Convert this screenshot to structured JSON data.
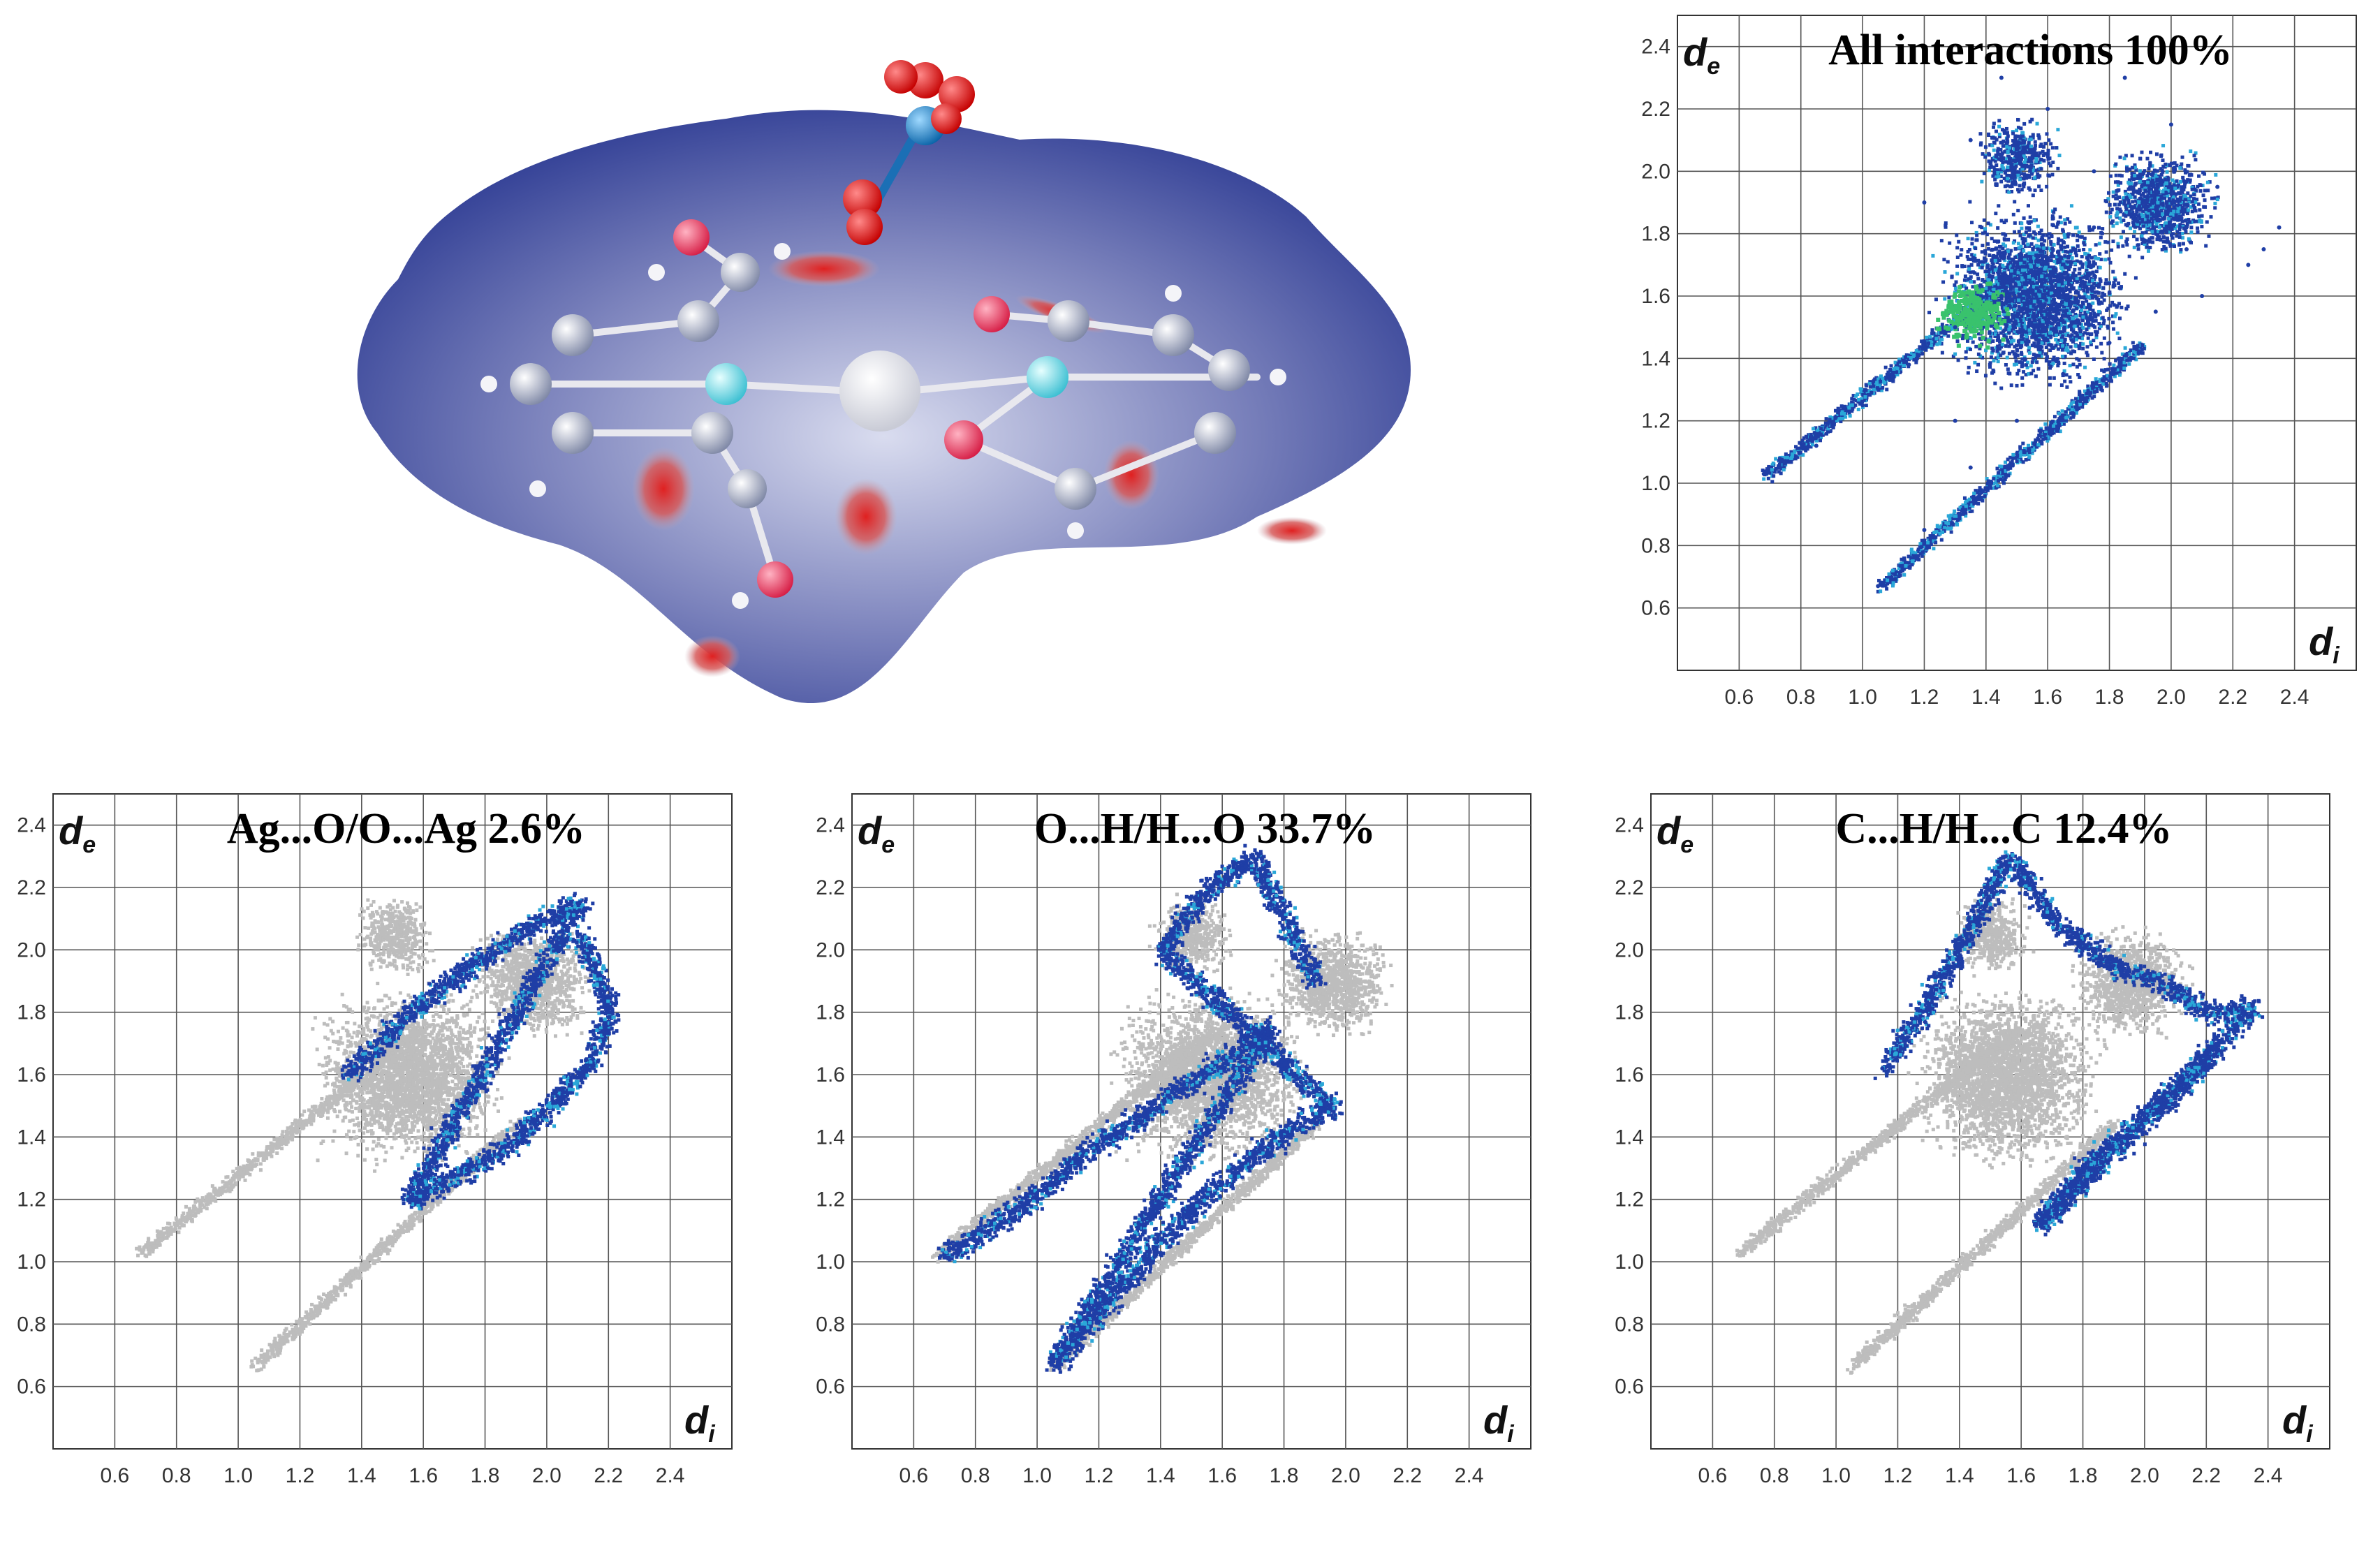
{
  "chart_data": [
    {
      "type": "scatter",
      "title": "All interactions 100%",
      "xlabel": "di",
      "ylabel": "de",
      "xlim": [
        0.4,
        2.6
      ],
      "ylim": [
        0.4,
        2.5
      ],
      "xticks": [
        "0.6",
        "0.8",
        "1.0",
        "1.2",
        "1.4",
        "1.6",
        "1.8",
        "2.0",
        "2.2",
        "2.4"
      ],
      "yticks": [
        "0.6",
        "0.8",
        "1.0",
        "1.2",
        "1.4",
        "1.6",
        "1.8",
        "2.0",
        "2.2",
        "2.4"
      ],
      "grid": true,
      "series": [
        {
          "role": "highlight",
          "regions": [
            [
              1.0,
              0.66,
              2.3,
              1.82
            ]
          ],
          "points": [
            [
              0.68,
              1.03
            ],
            [
              0.85,
              1.12
            ],
            [
              1.0,
              1.25
            ],
            [
              1.15,
              1.38
            ],
            [
              1.3,
              1.5
            ],
            [
              1.45,
              1.6
            ],
            [
              1.6,
              1.72
            ],
            [
              1.75,
              1.82
            ],
            [
              1.9,
              1.88
            ],
            [
              2.05,
              1.75
            ],
            [
              1.05,
              0.67
            ],
            [
              1.2,
              0.85
            ],
            [
              1.35,
              1.05
            ],
            [
              1.5,
              1.2
            ],
            [
              1.65,
              1.35
            ],
            [
              1.8,
              1.45
            ],
            [
              1.95,
              1.55
            ],
            [
              2.1,
              1.6
            ],
            [
              2.25,
              1.7
            ],
            [
              2.35,
              1.82
            ],
            [
              1.2,
              1.9
            ],
            [
              1.35,
              2.1
            ],
            [
              1.45,
              2.3
            ],
            [
              1.6,
              2.2
            ],
            [
              1.75,
              2.0
            ],
            [
              1.85,
              2.3
            ],
            [
              2.0,
              2.15
            ],
            [
              2.15,
              1.95
            ],
            [
              2.3,
              1.75
            ],
            [
              1.3,
              1.2
            ]
          ]
        }
      ]
    },
    {
      "type": "scatter",
      "title": "Ag...O/O...Ag    2.6%",
      "xlabel": "di",
      "ylabel": "de",
      "xlim": [
        0.4,
        2.6
      ],
      "ylim": [
        0.4,
        2.5
      ],
      "xticks": [
        "0.6",
        "0.8",
        "1.0",
        "1.2",
        "1.4",
        "1.6",
        "1.8",
        "2.0",
        "2.2",
        "2.4"
      ],
      "yticks": [
        "0.6",
        "0.8",
        "1.0",
        "1.2",
        "1.4",
        "1.6",
        "1.8",
        "2.0",
        "2.2",
        "2.4"
      ],
      "grid": true,
      "series": [
        {
          "role": "highlight",
          "points": [
            [
              1.35,
              1.6
            ],
            [
              1.45,
              1.7
            ],
            [
              1.55,
              1.8
            ],
            [
              1.65,
              1.88
            ],
            [
              1.75,
              1.95
            ],
            [
              1.85,
              2.02
            ],
            [
              1.95,
              2.08
            ],
            [
              2.05,
              2.13
            ],
            [
              2.1,
              2.15
            ],
            [
              1.55,
              1.2
            ],
            [
              1.7,
              1.28
            ],
            [
              1.85,
              1.36
            ],
            [
              1.95,
              1.45
            ],
            [
              2.05,
              1.55
            ],
            [
              2.15,
              1.65
            ],
            [
              2.2,
              1.8
            ],
            [
              2.15,
              1.95
            ],
            [
              2.1,
              2.05
            ]
          ]
        }
      ]
    },
    {
      "type": "scatter",
      "title": "O...H/H...O    33.7%",
      "xlabel": "di",
      "ylabel": "de",
      "xlim": [
        0.4,
        2.6
      ],
      "ylim": [
        0.4,
        2.5
      ],
      "xticks": [
        "0.6",
        "0.8",
        "1.0",
        "1.2",
        "1.4",
        "1.6",
        "1.8",
        "2.0",
        "2.2",
        "2.4"
      ],
      "yticks": [
        "0.6",
        "0.8",
        "1.0",
        "1.2",
        "1.4",
        "1.6",
        "1.8",
        "2.0",
        "2.2",
        "2.4"
      ],
      "grid": true,
      "series": [
        {
          "role": "highlight",
          "points": [
            [
              0.7,
              1.02
            ],
            [
              0.85,
              1.12
            ],
            [
              1.0,
              1.22
            ],
            [
              1.15,
              1.35
            ],
            [
              1.3,
              1.45
            ],
            [
              1.45,
              1.55
            ],
            [
              1.6,
              1.65
            ],
            [
              1.75,
              1.75
            ],
            [
              1.05,
              0.68
            ],
            [
              1.2,
              0.85
            ],
            [
              1.35,
              1.02
            ],
            [
              1.5,
              1.18
            ],
            [
              1.65,
              1.3
            ],
            [
              1.8,
              1.42
            ],
            [
              1.95,
              1.5
            ],
            [
              1.4,
              2.0
            ],
            [
              1.55,
              2.2
            ],
            [
              1.7,
              2.3
            ],
            [
              1.9,
              1.9
            ]
          ]
        }
      ]
    },
    {
      "type": "scatter",
      "title": "C...H/H...C       12.4%",
      "xlabel": "di",
      "ylabel": "de",
      "xlim": [
        0.4,
        2.6
      ],
      "ylim": [
        0.4,
        2.5
      ],
      "xticks": [
        "0.6",
        "0.8",
        "1.0",
        "1.2",
        "1.4",
        "1.6",
        "1.8",
        "2.0",
        "2.2",
        "2.4"
      ],
      "yticks": [
        "0.6",
        "0.8",
        "1.0",
        "1.2",
        "1.4",
        "1.6",
        "1.8",
        "2.0",
        "2.2",
        "2.4"
      ],
      "grid": true,
      "series": [
        {
          "role": "highlight",
          "points": [
            [
              1.15,
              1.62
            ],
            [
              1.3,
              1.85
            ],
            [
              1.45,
              2.1
            ],
            [
              1.55,
              2.3
            ],
            [
              1.7,
              2.1
            ],
            [
              1.9,
              1.95
            ],
            [
              2.05,
              1.9
            ],
            [
              2.2,
              1.8
            ],
            [
              2.35,
              1.82
            ],
            [
              1.65,
              1.12
            ],
            [
              1.8,
              1.3
            ],
            [
              1.95,
              1.42
            ],
            [
              2.1,
              1.55
            ],
            [
              2.2,
              1.65
            ]
          ]
        }
      ]
    }
  ],
  "colors": {
    "fingerprint_gray": "#bdbdbd",
    "fingerprint_blue": "#1f3ea6",
    "fingerprint_cyan": "#2aa7d8",
    "fingerprint_green": "#39c26d",
    "surface_blue": "#3f4fa3",
    "contact_red": "#d22a2a"
  },
  "figure_a": {
    "atoms": [
      "silver",
      "nitrogen",
      "oxygen",
      "carbon",
      "hydrogen"
    ]
  }
}
